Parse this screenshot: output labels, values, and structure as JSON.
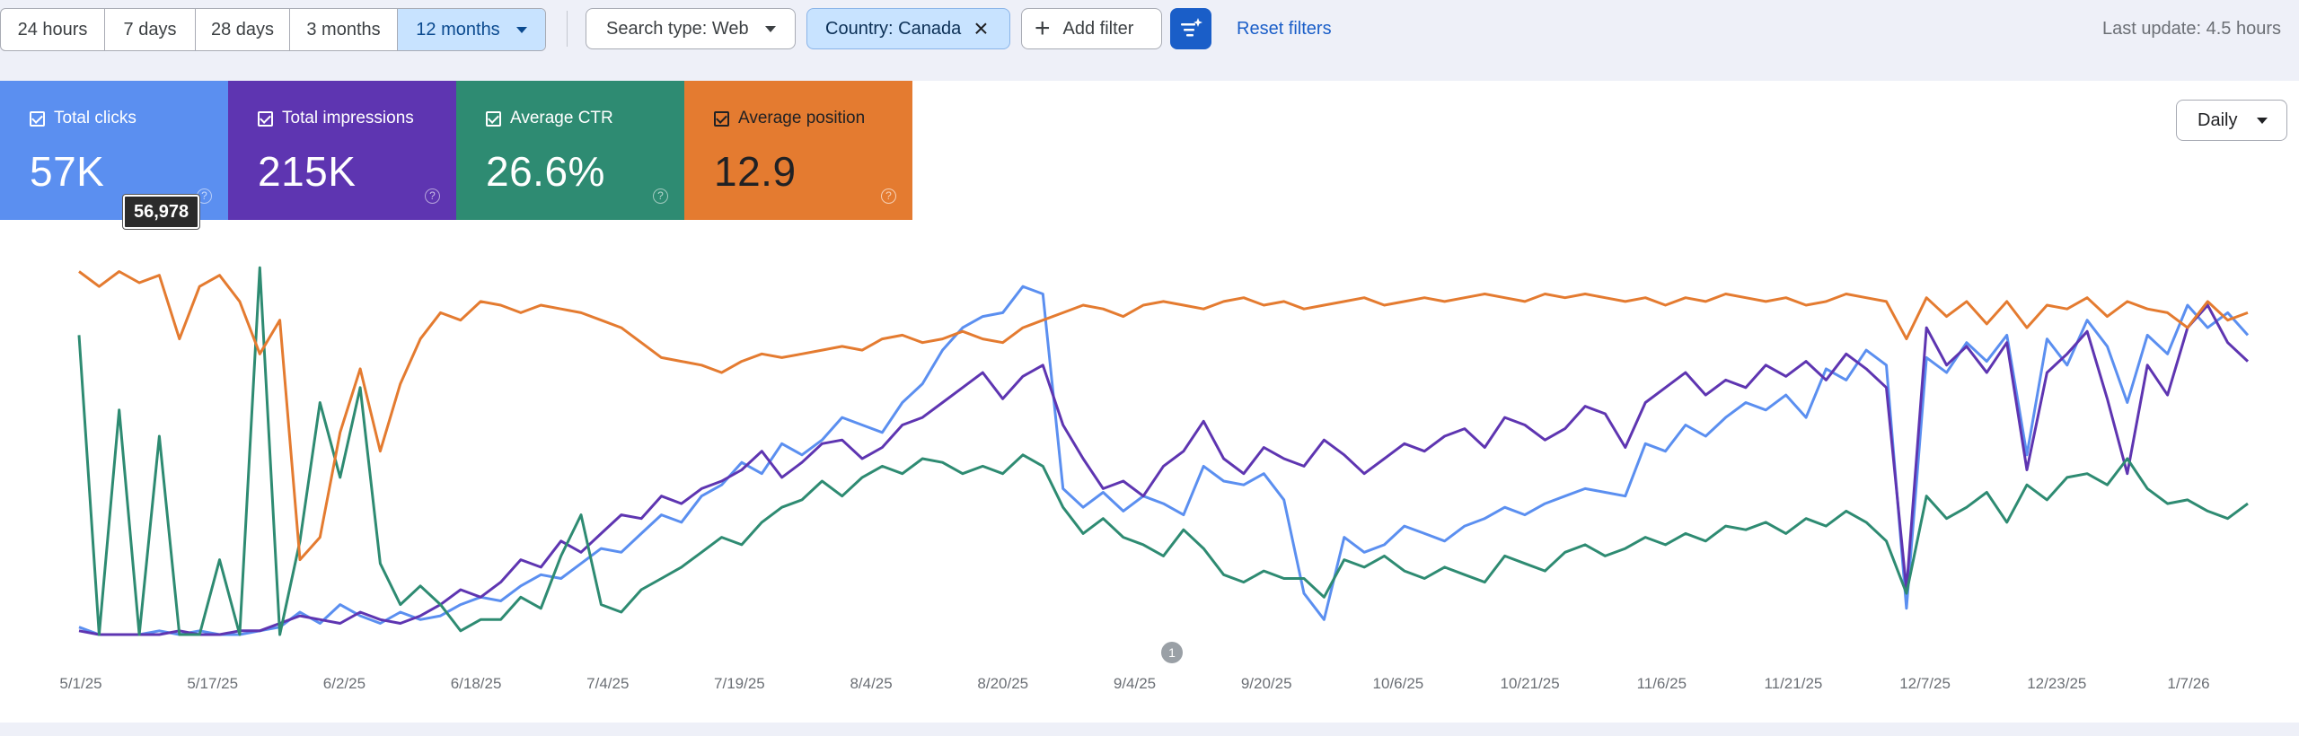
{
  "toolbar": {
    "ranges": [
      "24 hours",
      "7 days",
      "28 days",
      "3 months",
      "12 months"
    ],
    "selected_range_index": 4,
    "search_type": "Search type: Web",
    "country_filter": "Country: Canada",
    "add_filter": "Add filter",
    "reset_filters": "Reset filters",
    "last_update": "Last update: 4.5 hours"
  },
  "metrics": [
    {
      "label": "Total clicks",
      "value": "57K",
      "color": "#5b8ff0",
      "checked": true
    },
    {
      "label": "Total impressions",
      "value": "215K",
      "color": "#5e35b1",
      "checked": true
    },
    {
      "label": "Average CTR",
      "value": "26.6%",
      "color": "#2e8b72",
      "checked": true
    },
    {
      "label": "Average position",
      "value": "12.9",
      "color": "#e47b30",
      "checked": true
    }
  ],
  "tooltip": "56,978",
  "granularity": "Daily",
  "chart_data": {
    "type": "line",
    "x_tick_labels": [
      "5/1/25",
      "5/17/25",
      "6/2/25",
      "6/18/25",
      "7/4/25",
      "7/19/25",
      "8/4/25",
      "8/20/25",
      "9/4/25",
      "9/20/25",
      "10/6/25",
      "10/21/25",
      "11/6/25",
      "11/21/25",
      "12/7/25",
      "12/23/25",
      "1/7/26"
    ],
    "annotation": "1",
    "series": [
      {
        "name": "Total clicks",
        "color": "#5b8ff0",
        "values": [
          0.02,
          0.0,
          0.0,
          0.0,
          0.01,
          0.0,
          0.01,
          0.0,
          0.0,
          0.01,
          0.02,
          0.06,
          0.03,
          0.08,
          0.05,
          0.03,
          0.06,
          0.04,
          0.05,
          0.08,
          0.1,
          0.09,
          0.13,
          0.16,
          0.15,
          0.19,
          0.23,
          0.22,
          0.27,
          0.32,
          0.3,
          0.37,
          0.4,
          0.46,
          0.43,
          0.51,
          0.48,
          0.52,
          0.58,
          0.56,
          0.54,
          0.62,
          0.67,
          0.76,
          0.82,
          0.85,
          0.86,
          0.93,
          0.91,
          0.39,
          0.34,
          0.38,
          0.33,
          0.37,
          0.35,
          0.32,
          0.45,
          0.41,
          0.4,
          0.43,
          0.36,
          0.11,
          0.04,
          0.26,
          0.22,
          0.24,
          0.29,
          0.27,
          0.25,
          0.29,
          0.31,
          0.34,
          0.32,
          0.35,
          0.37,
          0.39,
          0.38,
          0.37,
          0.51,
          0.49,
          0.56,
          0.53,
          0.58,
          0.62,
          0.6,
          0.64,
          0.58,
          0.71,
          0.68,
          0.76,
          0.72,
          0.07,
          0.74,
          0.7,
          0.78,
          0.73,
          0.8,
          0.48,
          0.79,
          0.72,
          0.84,
          0.77,
          0.62,
          0.8,
          0.75,
          0.88,
          0.82,
          0.86,
          0.8
        ]
      },
      {
        "name": "Total impressions",
        "color": "#5e35b1",
        "values": [
          0.01,
          0.0,
          0.0,
          0.0,
          0.0,
          0.01,
          0.0,
          0.0,
          0.01,
          0.01,
          0.03,
          0.05,
          0.04,
          0.03,
          0.06,
          0.04,
          0.03,
          0.05,
          0.08,
          0.12,
          0.1,
          0.14,
          0.2,
          0.18,
          0.25,
          0.22,
          0.27,
          0.32,
          0.31,
          0.37,
          0.35,
          0.39,
          0.41,
          0.44,
          0.49,
          0.42,
          0.46,
          0.51,
          0.52,
          0.47,
          0.5,
          0.56,
          0.58,
          0.62,
          0.66,
          0.7,
          0.63,
          0.69,
          0.72,
          0.56,
          0.47,
          0.39,
          0.41,
          0.37,
          0.45,
          0.49,
          0.57,
          0.47,
          0.43,
          0.5,
          0.47,
          0.45,
          0.52,
          0.48,
          0.43,
          0.47,
          0.51,
          0.49,
          0.53,
          0.55,
          0.5,
          0.58,
          0.56,
          0.52,
          0.55,
          0.61,
          0.59,
          0.5,
          0.62,
          0.66,
          0.7,
          0.64,
          0.68,
          0.66,
          0.72,
          0.69,
          0.73,
          0.68,
          0.75,
          0.71,
          0.66,
          0.12,
          0.82,
          0.72,
          0.77,
          0.7,
          0.78,
          0.44,
          0.7,
          0.75,
          0.81,
          0.63,
          0.43,
          0.72,
          0.64,
          0.82,
          0.88,
          0.78,
          0.73
        ]
      },
      {
        "name": "Average CTR",
        "color": "#2e8b72",
        "values": [
          0.8,
          0.0,
          0.6,
          0.0,
          0.53,
          0.0,
          0.0,
          0.2,
          0.0,
          0.98,
          0.0,
          0.25,
          0.62,
          0.42,
          0.66,
          0.19,
          0.08,
          0.13,
          0.08,
          0.01,
          0.04,
          0.04,
          0.1,
          0.07,
          0.21,
          0.32,
          0.08,
          0.06,
          0.12,
          0.15,
          0.18,
          0.22,
          0.26,
          0.24,
          0.3,
          0.34,
          0.36,
          0.41,
          0.37,
          0.42,
          0.45,
          0.43,
          0.47,
          0.46,
          0.43,
          0.45,
          0.43,
          0.48,
          0.45,
          0.34,
          0.27,
          0.31,
          0.26,
          0.24,
          0.21,
          0.28,
          0.23,
          0.16,
          0.14,
          0.17,
          0.15,
          0.15,
          0.1,
          0.2,
          0.18,
          0.21,
          0.17,
          0.15,
          0.18,
          0.16,
          0.14,
          0.21,
          0.19,
          0.17,
          0.22,
          0.24,
          0.21,
          0.23,
          0.26,
          0.24,
          0.27,
          0.25,
          0.29,
          0.28,
          0.3,
          0.27,
          0.31,
          0.29,
          0.33,
          0.3,
          0.25,
          0.11,
          0.37,
          0.31,
          0.34,
          0.38,
          0.3,
          0.4,
          0.36,
          0.42,
          0.43,
          0.4,
          0.47,
          0.39,
          0.35,
          0.36,
          0.33,
          0.31,
          0.35
        ]
      },
      {
        "name": "Average position",
        "color": "#e47b30",
        "values": [
          0.97,
          0.93,
          0.97,
          0.94,
          0.96,
          0.79,
          0.93,
          0.96,
          0.89,
          0.75,
          0.84,
          0.2,
          0.26,
          0.54,
          0.71,
          0.49,
          0.67,
          0.79,
          0.86,
          0.84,
          0.89,
          0.88,
          0.86,
          0.88,
          0.87,
          0.86,
          0.84,
          0.82,
          0.78,
          0.74,
          0.73,
          0.72,
          0.7,
          0.73,
          0.75,
          0.74,
          0.75,
          0.76,
          0.77,
          0.76,
          0.79,
          0.8,
          0.78,
          0.79,
          0.81,
          0.79,
          0.78,
          0.82,
          0.84,
          0.86,
          0.88,
          0.87,
          0.85,
          0.88,
          0.89,
          0.88,
          0.87,
          0.89,
          0.9,
          0.88,
          0.89,
          0.87,
          0.88,
          0.89,
          0.9,
          0.88,
          0.89,
          0.9,
          0.89,
          0.9,
          0.91,
          0.9,
          0.89,
          0.91,
          0.9,
          0.91,
          0.9,
          0.89,
          0.9,
          0.88,
          0.9,
          0.89,
          0.91,
          0.9,
          0.89,
          0.9,
          0.88,
          0.89,
          0.91,
          0.9,
          0.89,
          0.79,
          0.9,
          0.85,
          0.89,
          0.83,
          0.89,
          0.82,
          0.88,
          0.87,
          0.9,
          0.85,
          0.89,
          0.87,
          0.86,
          0.82,
          0.89,
          0.84,
          0.86
        ]
      }
    ]
  }
}
